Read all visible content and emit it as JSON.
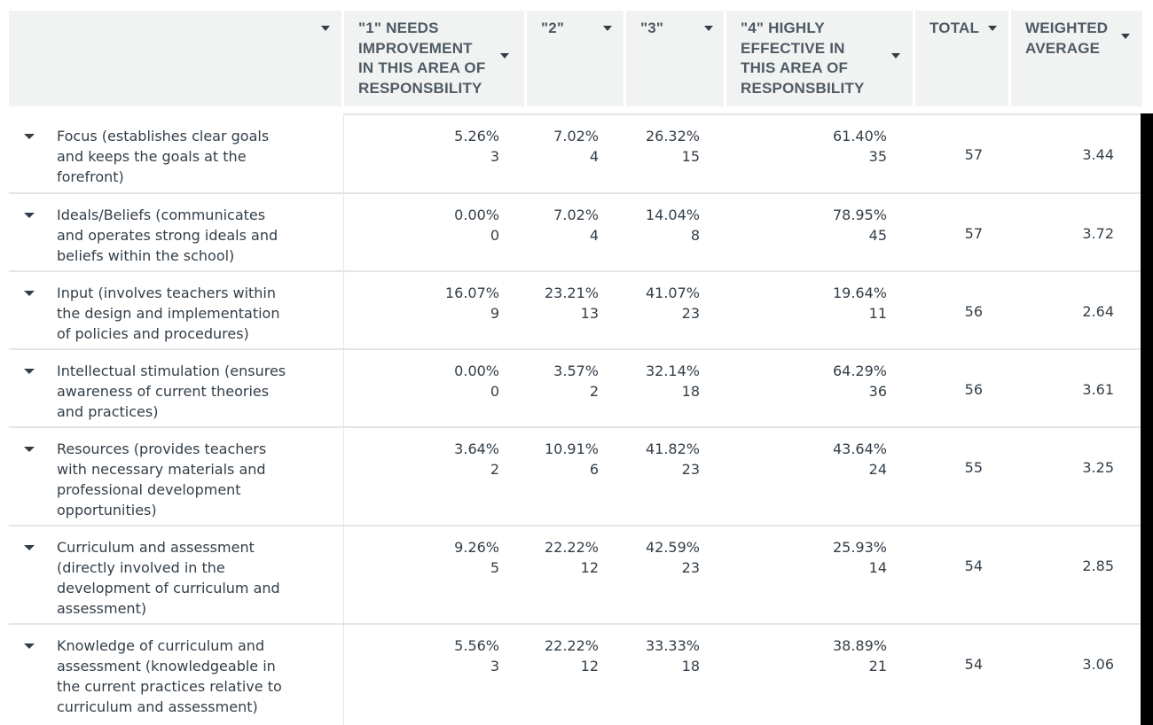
{
  "header": {
    "blank": "",
    "c1": "\"1\" NEEDS IMPROVEMENT IN THIS AREA OF RESPONSBILITY",
    "c2": "\"2\"",
    "c3": "\"3\"",
    "c4": "\"4\" HIGHLY EFFECTIVE IN THIS AREA OF RESPONSBILITY",
    "total": "TOTAL",
    "wavg": "WEIGHTED AVERAGE"
  },
  "rows": [
    {
      "label": "Focus (establishes clear goals\nand keeps the goals at the\nforefront)",
      "c1p": "5.26%",
      "c1n": "3",
      "c2p": "7.02%",
      "c2n": "4",
      "c3p": "26.32%",
      "c3n": "15",
      "c4p": "61.40%",
      "c4n": "35",
      "total": "57",
      "wavg": "3.44"
    },
    {
      "label": "Ideals/Beliefs (communicates\nand operates strong ideals and\nbeliefs within the school)",
      "c1p": "0.00%",
      "c1n": "0",
      "c2p": "7.02%",
      "c2n": "4",
      "c3p": "14.04%",
      "c3n": "8",
      "c4p": "78.95%",
      "c4n": "45",
      "total": "57",
      "wavg": "3.72"
    },
    {
      "label": "Input (involves teachers within\nthe design and implementation\nof policies and procedures)",
      "c1p": "16.07%",
      "c1n": "9",
      "c2p": "23.21%",
      "c2n": "13",
      "c3p": "41.07%",
      "c3n": "23",
      "c4p": "19.64%",
      "c4n": "11",
      "total": "56",
      "wavg": "2.64"
    },
    {
      "label": "Intellectual stimulation (ensures\nawareness of current theories\nand practices)",
      "c1p": "0.00%",
      "c1n": "0",
      "c2p": "3.57%",
      "c2n": "2",
      "c3p": "32.14%",
      "c3n": "18",
      "c4p": "64.29%",
      "c4n": "36",
      "total": "56",
      "wavg": "3.61"
    },
    {
      "label": "Resources (provides teachers\nwith necessary materials and\nprofessional development\nopportunities)",
      "c1p": "3.64%",
      "c1n": "2",
      "c2p": "10.91%",
      "c2n": "6",
      "c3p": "41.82%",
      "c3n": "23",
      "c4p": "43.64%",
      "c4n": "24",
      "total": "55",
      "wavg": "3.25"
    },
    {
      "label": "Curriculum and assessment\n(directly involved in the\ndevelopment of curriculum and\nassessment)",
      "c1p": "9.26%",
      "c1n": "5",
      "c2p": "22.22%",
      "c2n": "12",
      "c3p": "42.59%",
      "c3n": "23",
      "c4p": "25.93%",
      "c4n": "14",
      "total": "54",
      "wavg": "2.85"
    },
    {
      "label": "Knowledge of curriculum and\nassessment (knowledgeable in\nthe current practices relative to\ncurriculum and assessment)",
      "c1p": "5.56%",
      "c1n": "3",
      "c2p": "22.22%",
      "c2n": "12",
      "c3p": "33.33%",
      "c3n": "18",
      "c4p": "38.89%",
      "c4n": "21",
      "total": "54",
      "wavg": "3.06"
    }
  ]
}
